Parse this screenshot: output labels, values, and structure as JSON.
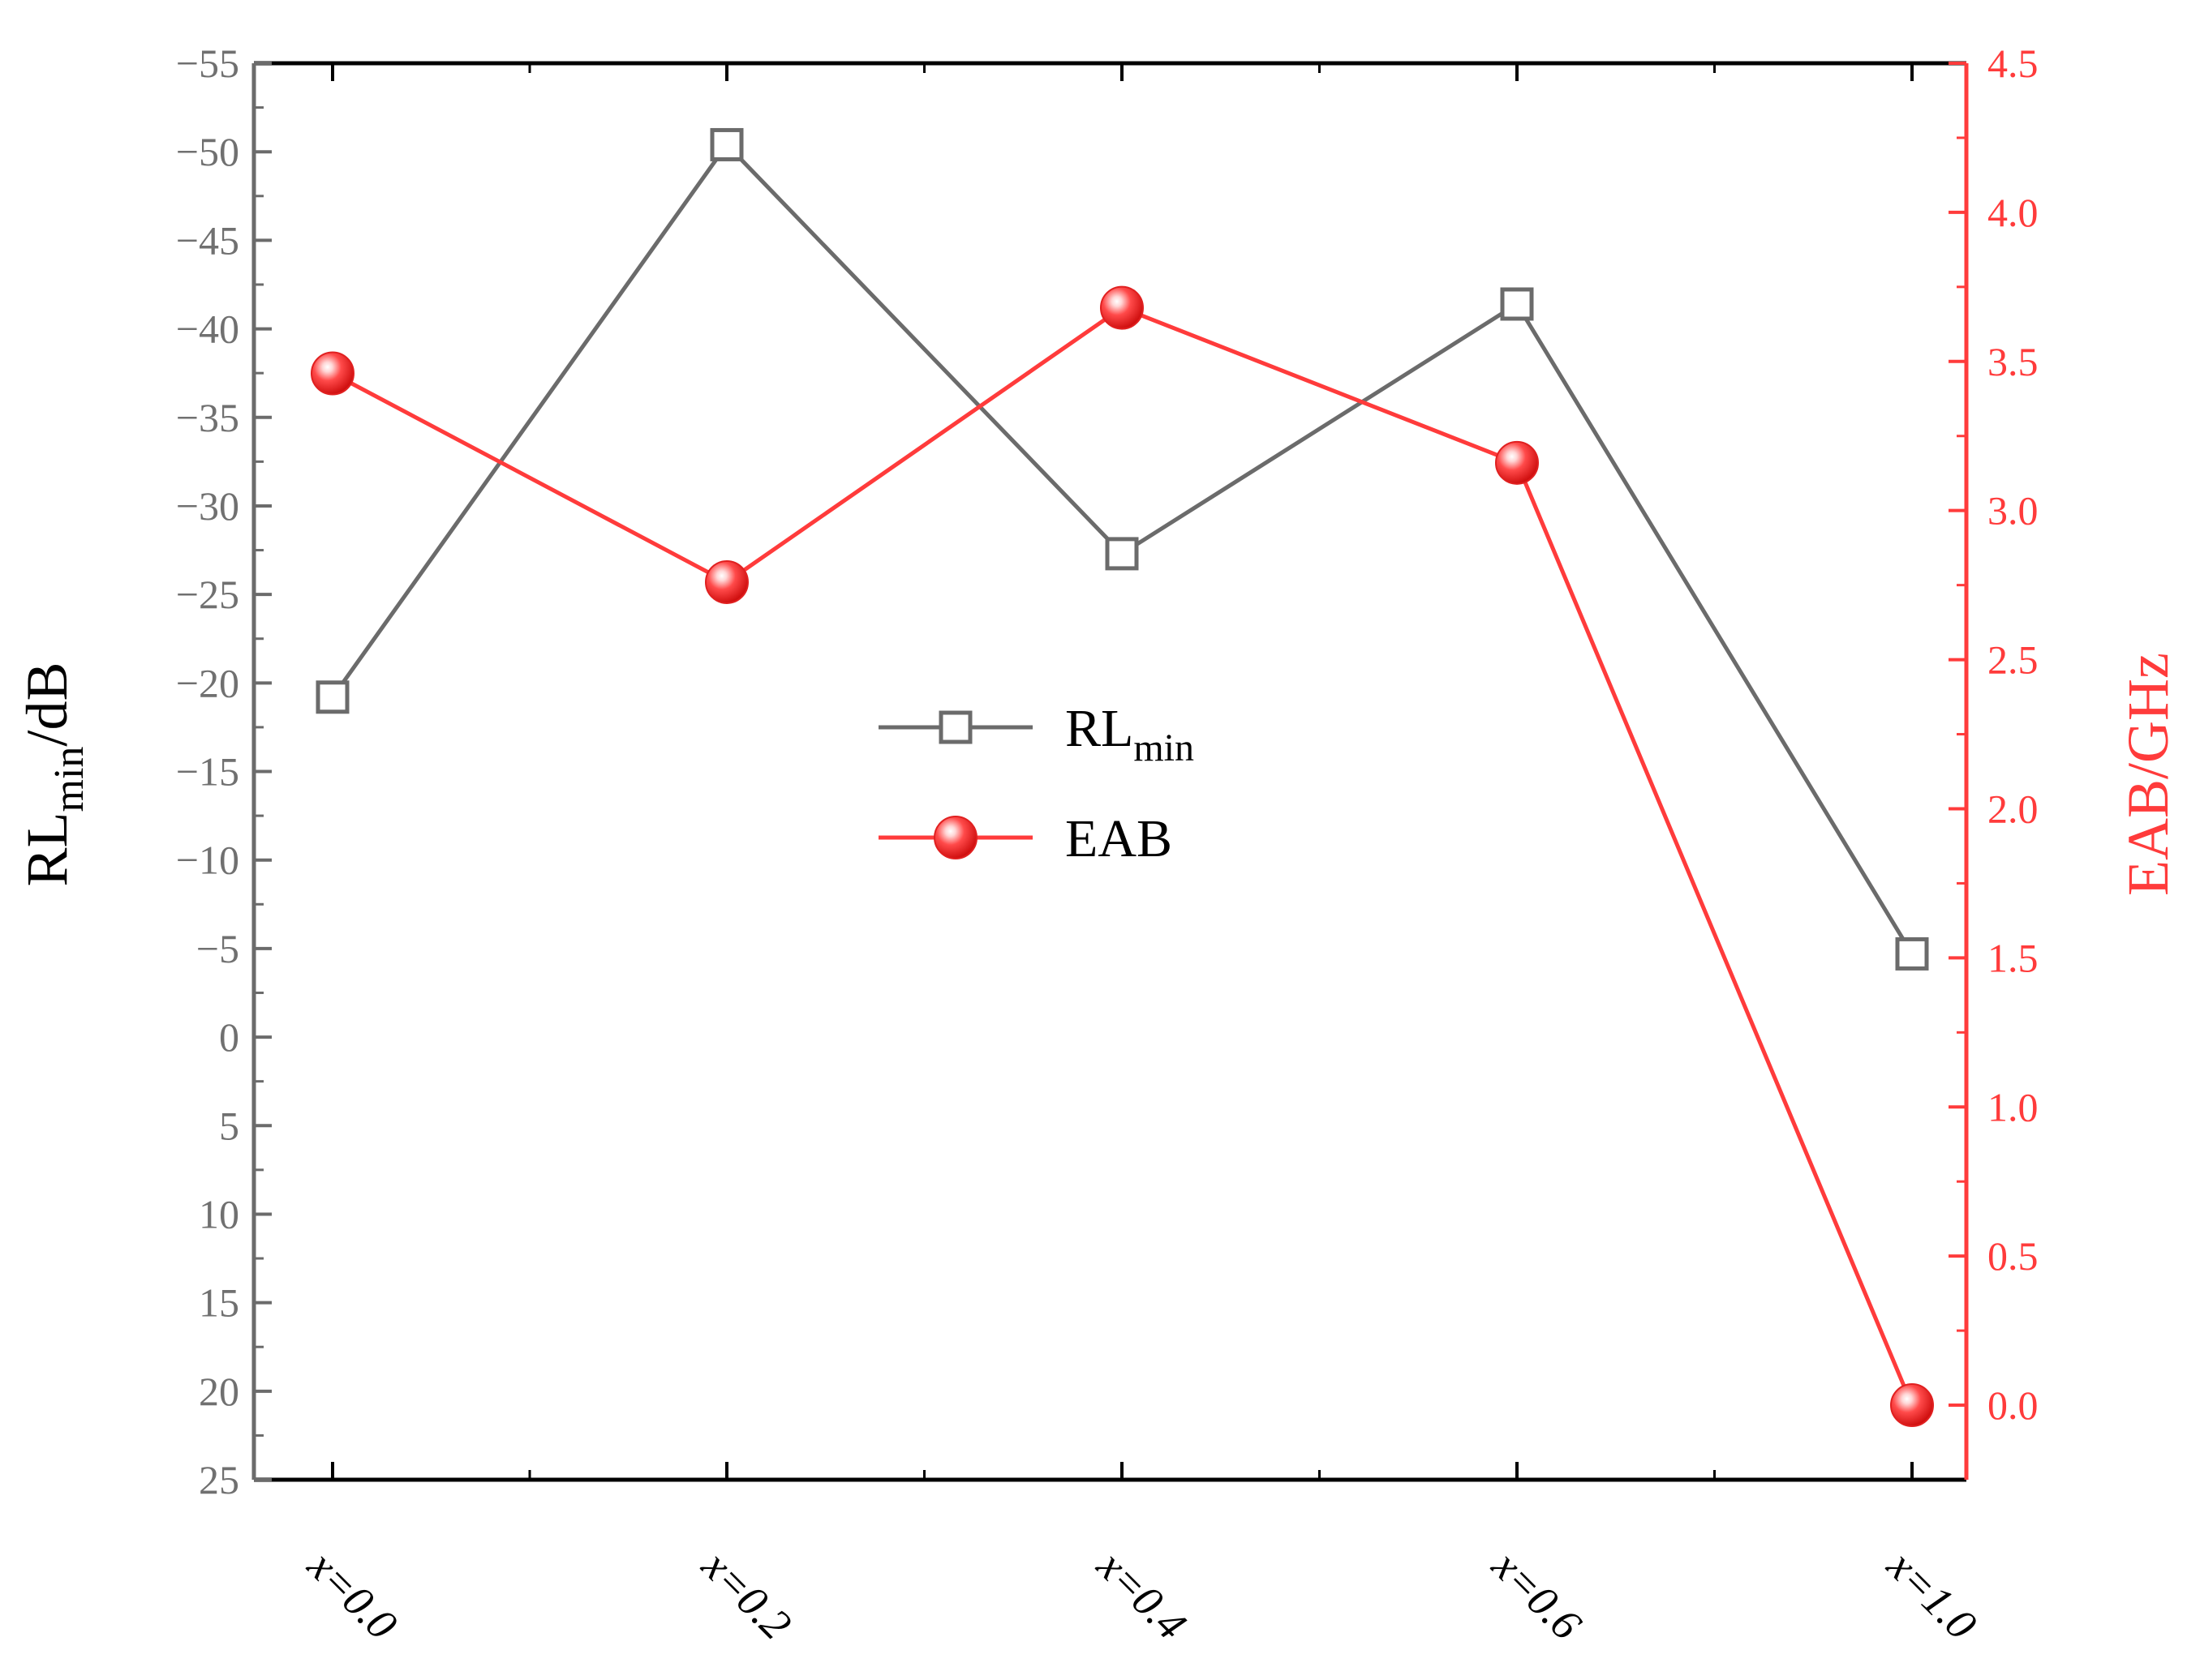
{
  "chart_data": {
    "type": "line",
    "categories": [
      "x=0.0",
      "x=0.2",
      "x=0.4",
      "x=0.6",
      "x=1.0"
    ],
    "series": [
      {
        "name": "RLmin",
        "name_main": "RL",
        "name_sub": "min",
        "axis": "left",
        "marker": "open-square",
        "color": "#6b6b6b",
        "values": [
          -19.2,
          -50.4,
          -27.3,
          -41.4,
          -4.7
        ]
      },
      {
        "name": "EAB",
        "axis": "right",
        "marker": "filled-sphere",
        "color": "#ff3b3b",
        "values": [
          3.46,
          2.76,
          3.68,
          3.16,
          0.0
        ]
      }
    ],
    "y_left": {
      "title": "RLmin/dB",
      "title_main": "RL",
      "title_sub": "min",
      "title_tail": "/dB",
      "range": [
        25,
        -55
      ],
      "inverted": true,
      "ticks": [
        -55,
        -50,
        -45,
        -40,
        -35,
        -30,
        -25,
        -20,
        -15,
        -10,
        -5,
        0,
        5,
        10,
        15,
        20,
        25
      ],
      "tick_labels": [
        "−55",
        "−50",
        "−45",
        "−40",
        "−35",
        "−30",
        "−25",
        "−20",
        "−15",
        "−10",
        "−5",
        "0",
        "5",
        "10",
        "15",
        "20",
        "25"
      ],
      "color": "#6b6b6b"
    },
    "y_right": {
      "title": "EAB/GHz",
      "range": [
        -0.25,
        4.5
      ],
      "ticks": [
        0.0,
        0.5,
        1.0,
        1.5,
        2.0,
        2.5,
        3.0,
        3.5,
        4.0,
        4.5
      ],
      "tick_labels": [
        "0.0",
        "0.5",
        "1.0",
        "1.5",
        "2.0",
        "2.5",
        "3.0",
        "3.5",
        "4.0",
        "4.5"
      ],
      "color": "#ff3b3b"
    },
    "legend_position": "center",
    "grid": false
  }
}
